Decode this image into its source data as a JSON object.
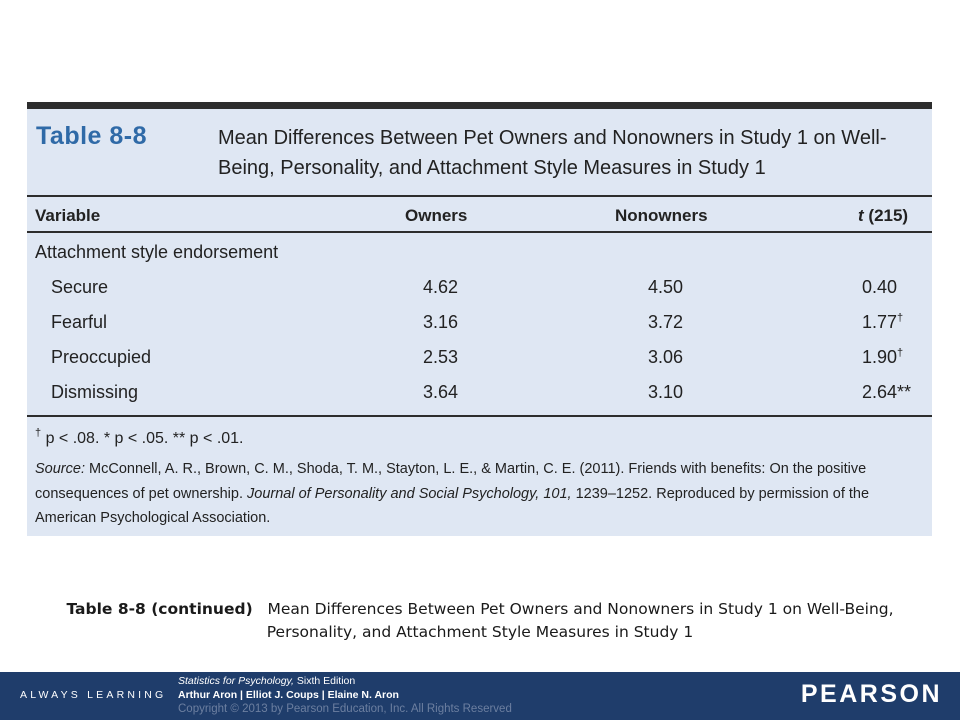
{
  "table": {
    "label": "Table 8-8",
    "title": "Mean Differences Between Pet Owners and Nonowners in Study 1 on Well-Being, Personality, and Attachment Style Measures in Study 1",
    "columns": {
      "variable": "Variable",
      "owners": "Owners",
      "nonowners": "Nonowners",
      "t_symbol": "t",
      "t_df": "(215)"
    },
    "section": "Attachment style endorsement",
    "rows": [
      {
        "name": "Secure",
        "owners": "4.62",
        "nonowners": "4.50",
        "t": "0.40",
        "mark": ""
      },
      {
        "name": "Fearful",
        "owners": "3.16",
        "nonowners": "3.72",
        "t": "1.77",
        "mark": "†"
      },
      {
        "name": "Preoccupied",
        "owners": "2.53",
        "nonowners": "3.06",
        "t": "1.90",
        "mark": "†"
      },
      {
        "name": "Dismissing",
        "owners": "3.64",
        "nonowners": "3.10",
        "t": "2.64**",
        "mark": ""
      }
    ],
    "footnote": "p < .08. * p < .05. ** p < .01.",
    "footnote_dagger": "†",
    "source_label": "Source:",
    "source_text_1": "McConnell, A. R., Brown, C. M., Shoda, T. M., Stayton, L. E., & Martin, C. E. (2011). Friends with benefits: On the positive consequences of pet ownership.",
    "source_journal": "Journal of Personality and Social Psychology, 101,",
    "source_text_2": "1239–1252. Reproduced by permission of the American Psychological Association."
  },
  "caption": {
    "label": "Table 8-8 (continued)",
    "text": "Mean Differences Between Pet Owners and Nonowners in Study 1 on Well-Being, Personality, and Attachment Style Measures in Study 1"
  },
  "footer": {
    "tagline": "ALWAYS LEARNING",
    "book_title": "Statistics for Psychology,",
    "edition": "Sixth Edition",
    "authors": "Arthur Aron | Elliot J. Coups | Elaine N. Aron",
    "copyright": "Copyright © 2013 by Pearson Education, Inc. All Rights Reserved",
    "logo": "PEARSON",
    "colors": {
      "bar": "#1f3d6b",
      "accent": "#2f6aa7",
      "panel": "#dfe7f3"
    }
  }
}
